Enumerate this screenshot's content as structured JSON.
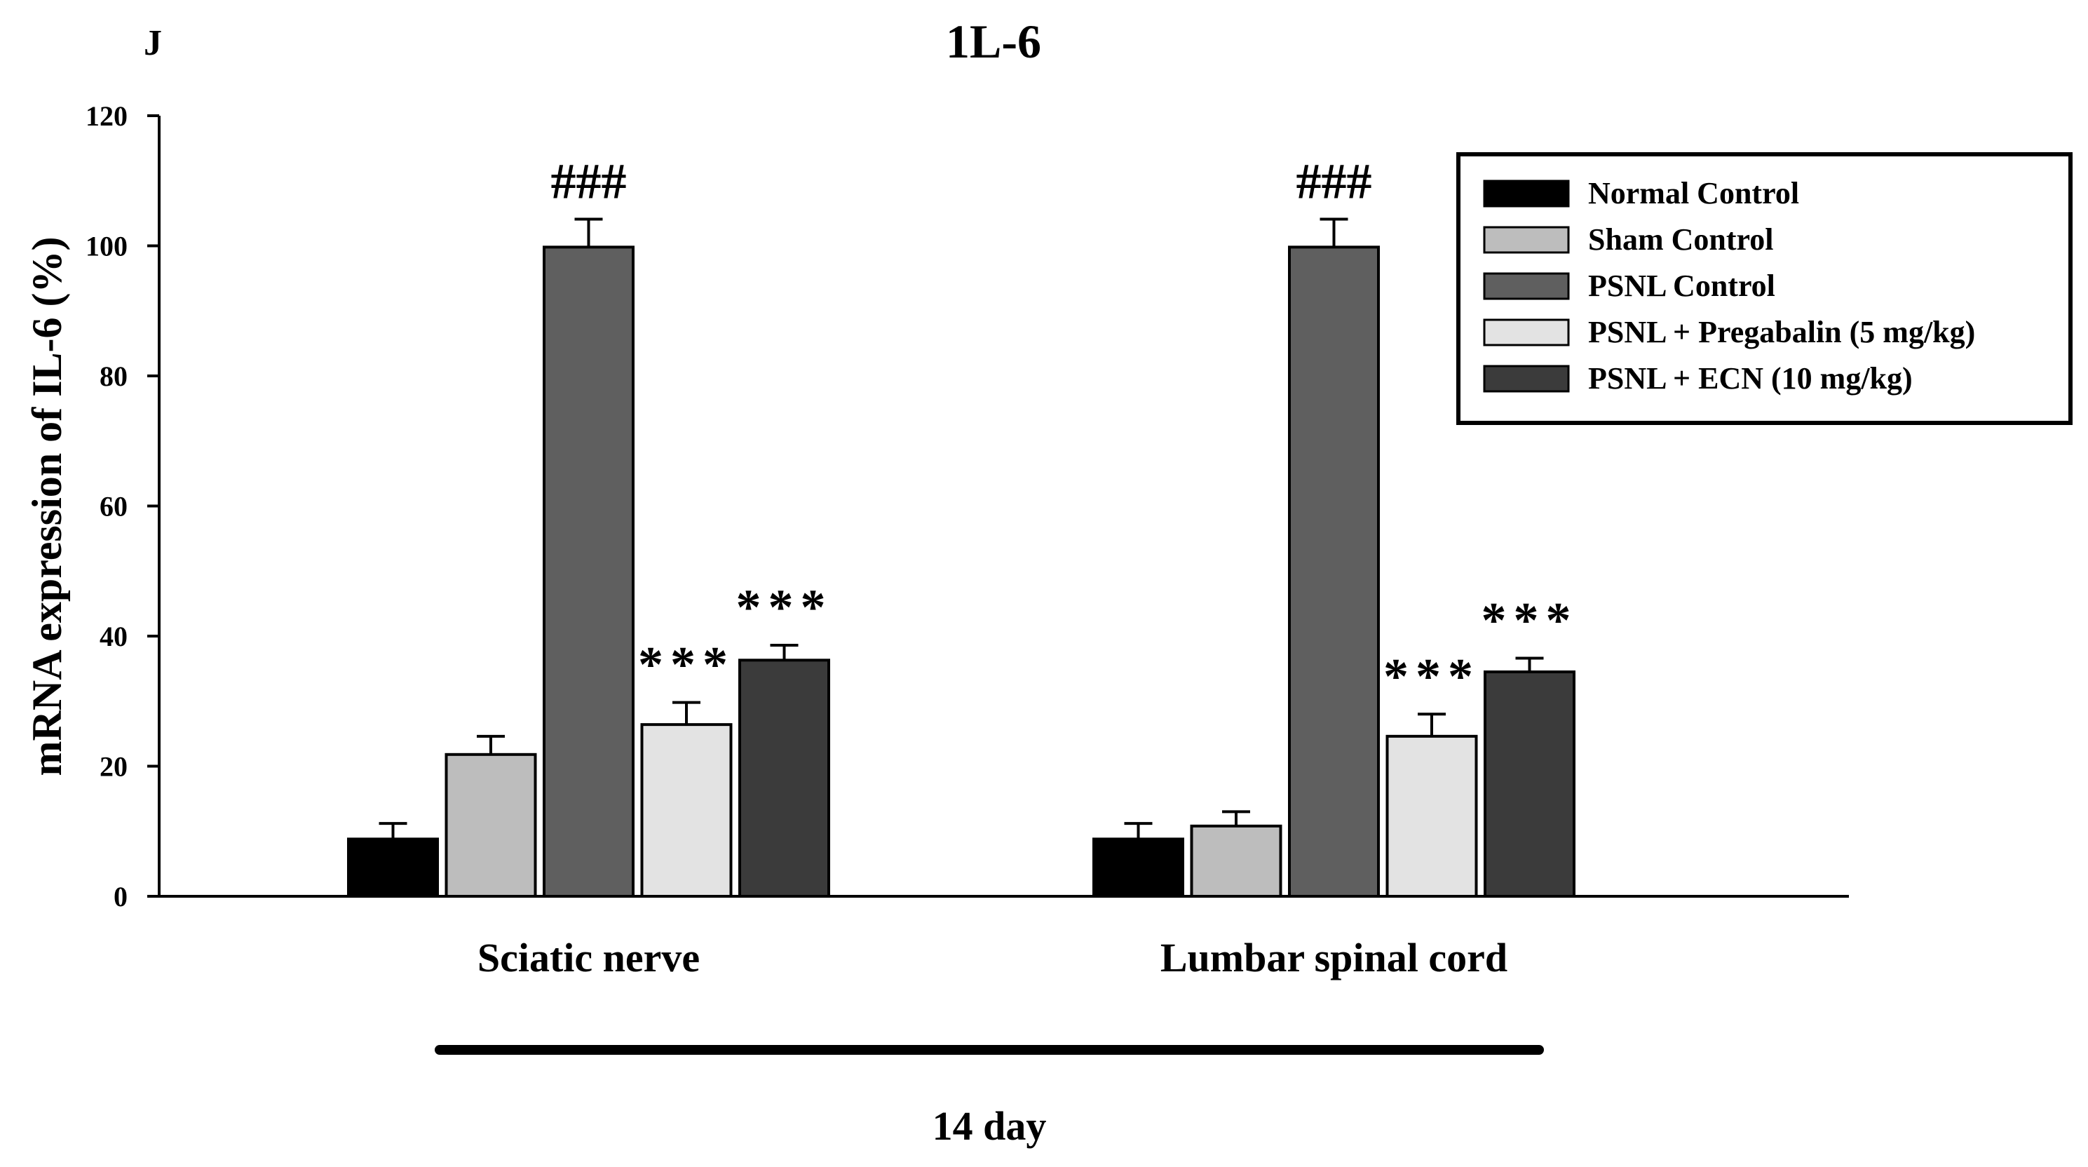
{
  "panel_label": "J",
  "chart_data": {
    "type": "bar",
    "title": "1L-6",
    "xlabel": "",
    "ylabel": "mRNA expression of IL-6 (%)",
    "ylim": [
      0,
      120
    ],
    "yticks": [
      0,
      20,
      40,
      60,
      80,
      100,
      120
    ],
    "categories": [
      "Sciatic nerve",
      "Lumbar spinal cord"
    ],
    "timepoint_label": "14 day",
    "legend_position": "top-right",
    "series": [
      {
        "name": "Normal Control",
        "color": "#000000",
        "values": [
          8.8,
          8.8
        ],
        "errors": [
          2.4,
          2.4
        ],
        "annotations": [
          "",
          ""
        ]
      },
      {
        "name": "Sham Control",
        "color": "#bdbdbd",
        "values": [
          21.8,
          10.8
        ],
        "errors": [
          2.8,
          2.2
        ],
        "annotations": [
          "",
          ""
        ]
      },
      {
        "name": "PSNL Control",
        "color": "#5f5f5f",
        "values": [
          99.8,
          99.8
        ],
        "errors": [
          4.3,
          4.3
        ],
        "annotations": [
          "###",
          "###"
        ]
      },
      {
        "name": "PSNL + Pregabalin (5 mg/kg)",
        "color": "#e3e3e3",
        "values": [
          26.4,
          24.6
        ],
        "errors": [
          3.4,
          3.4
        ],
        "annotations": [
          "***",
          "***"
        ]
      },
      {
        "name": "PSNL + ECN (10 mg/kg)",
        "color": "#3b3b3b",
        "values": [
          36.3,
          34.5
        ],
        "errors": [
          2.3,
          2.1
        ],
        "annotations": [
          "***",
          "***"
        ]
      }
    ]
  }
}
